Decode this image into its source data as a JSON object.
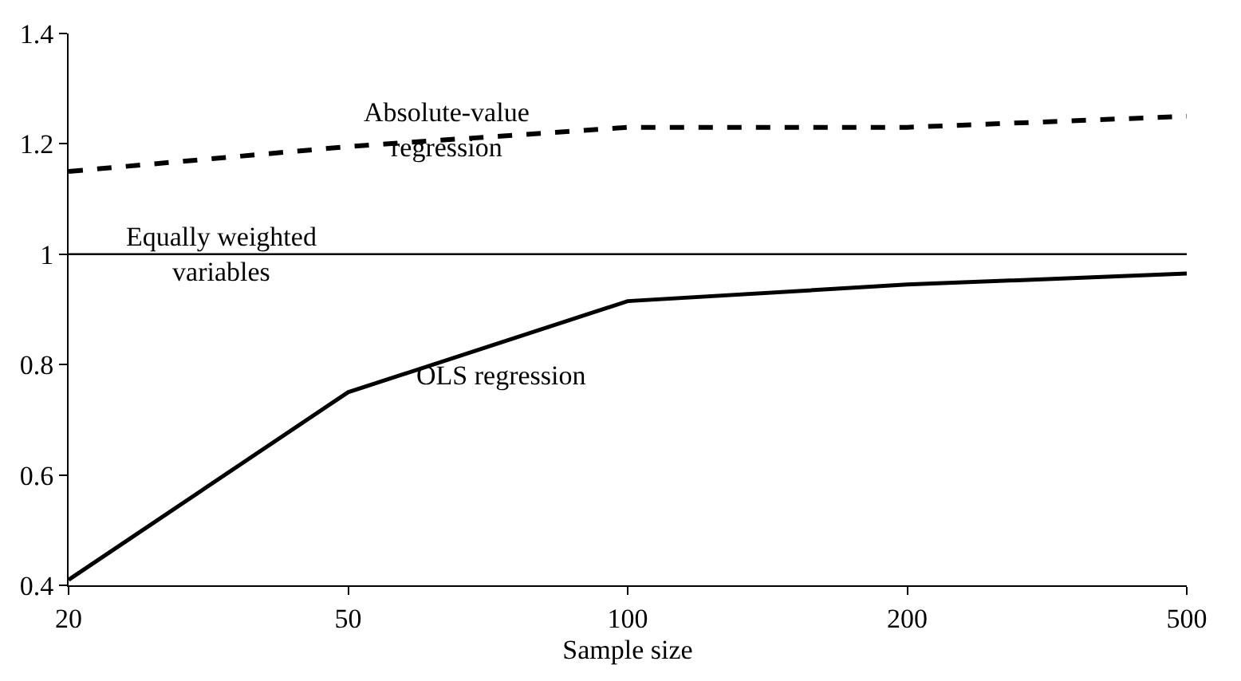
{
  "chart_data": {
    "type": "line",
    "xlabel": "Sample size",
    "categories": [
      "20",
      "50",
      "100",
      "200",
      "500"
    ],
    "ylim": [
      0.4,
      1.4
    ],
    "yticks": [
      0.4,
      0.6,
      0.8,
      1,
      1.2,
      1.4
    ],
    "marker": "none",
    "series": [
      {
        "name": "Absolute-value regression",
        "color": "#000000",
        "line_style": "dashed",
        "values": [
          1.15,
          1.195,
          1.23,
          1.23,
          1.25
        ]
      },
      {
        "name": "Equally weighted variables",
        "color": "#000000",
        "line_style": "solid",
        "values": [
          1,
          1,
          1,
          1,
          1
        ]
      },
      {
        "name": "OLS regression",
        "color": "#000000",
        "line_style": "solid",
        "values": [
          0.41,
          0.75,
          0.915,
          0.945,
          0.965
        ]
      }
    ]
  }
}
